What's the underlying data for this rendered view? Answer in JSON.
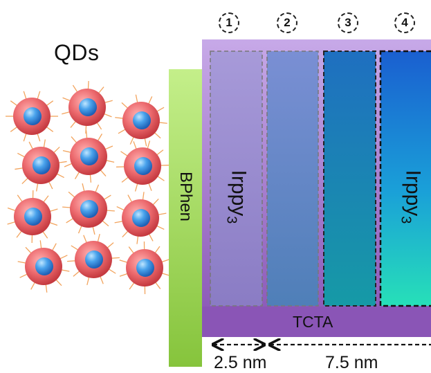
{
  "diagram": {
    "qds_label": "QDs",
    "layers": {
      "bphen": "BPhen",
      "tcta": "TCTA",
      "emitter_main": "Irppy",
      "emitter_sub": "3"
    },
    "position_markers": [
      "1",
      "2",
      "3",
      "4"
    ],
    "dimensions": [
      "2.5 nm",
      "7.5 nm"
    ],
    "colors": {
      "qd_shell": "#e85a5e",
      "qd_core": "#3d8fe0",
      "bphen": "#9bd04a",
      "tcta": "#8a5bb5",
      "stripe_1": "#9b8fd6",
      "stripe_2": "#6f86cc",
      "stripe_3": "#1f7fb0",
      "stripe_4": "#14a6b0"
    }
  }
}
